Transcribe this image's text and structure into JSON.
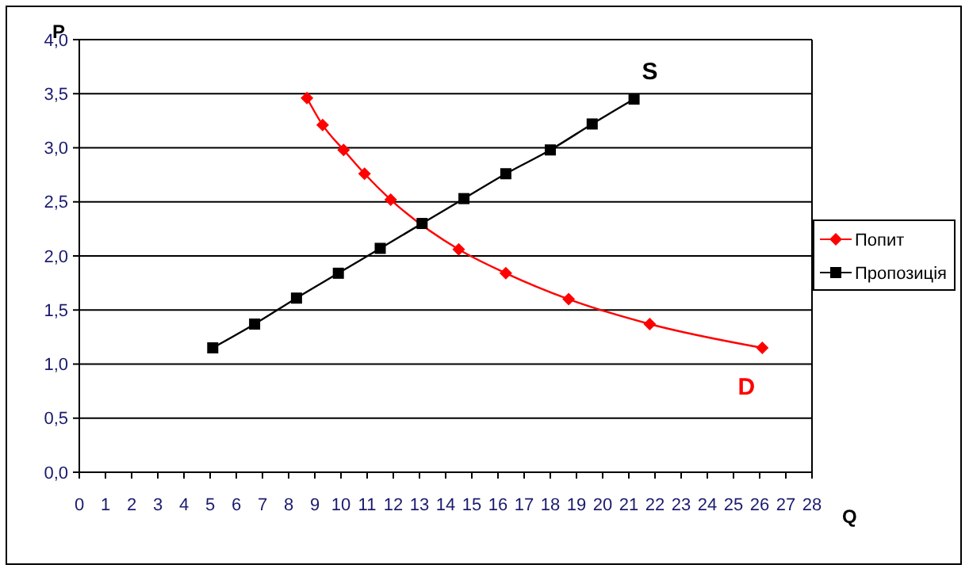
{
  "chart_data": {
    "type": "line",
    "xlabel": "Q",
    "ylabel": "P",
    "xlim": [
      0,
      28
    ],
    "xticks": [
      0,
      1,
      2,
      3,
      4,
      5,
      6,
      7,
      8,
      9,
      10,
      11,
      12,
      13,
      14,
      15,
      16,
      17,
      18,
      19,
      20,
      21,
      22,
      23,
      24,
      25,
      26,
      27,
      28
    ],
    "ylim": [
      0,
      4
    ],
    "yticks": [
      {
        "value": 0,
        "label": "0,0"
      },
      {
        "value": 0.5,
        "label": "0,5"
      },
      {
        "value": 1,
        "label": "1,0"
      },
      {
        "value": 1.5,
        "label": "1,5"
      },
      {
        "value": 2,
        "label": "2,0"
      },
      {
        "value": 2.5,
        "label": "2,5"
      },
      {
        "value": 3,
        "label": "3,0"
      },
      {
        "value": 3.5,
        "label": "3,5"
      },
      {
        "value": 4,
        "label": "4,0"
      }
    ],
    "grid": "y",
    "legend": "right",
    "line_style": "solid",
    "series": [
      {
        "name": "Попит",
        "color": "#ff0000",
        "marker": "diamond",
        "x": [
          8.7,
          9.3,
          10.1,
          10.9,
          11.9,
          14.5,
          16.3,
          18.7,
          21.8,
          26.1
        ],
        "values": [
          3.46,
          3.21,
          2.98,
          2.76,
          2.52,
          2.06,
          1.84,
          1.6,
          1.37,
          1.15
        ]
      },
      {
        "name": "Пропозиція",
        "color": "#000000",
        "marker": "square",
        "x": [
          5.1,
          6.7,
          8.3,
          9.9,
          11.5,
          13.1,
          14.7,
          16.3,
          18,
          19.6,
          21.2
        ],
        "values": [
          1.15,
          1.37,
          1.61,
          1.84,
          2.07,
          2.3,
          2.53,
          2.76,
          2.98,
          3.22,
          3.45
        ]
      }
    ],
    "annotations": [
      "S",
      "D"
    ]
  }
}
